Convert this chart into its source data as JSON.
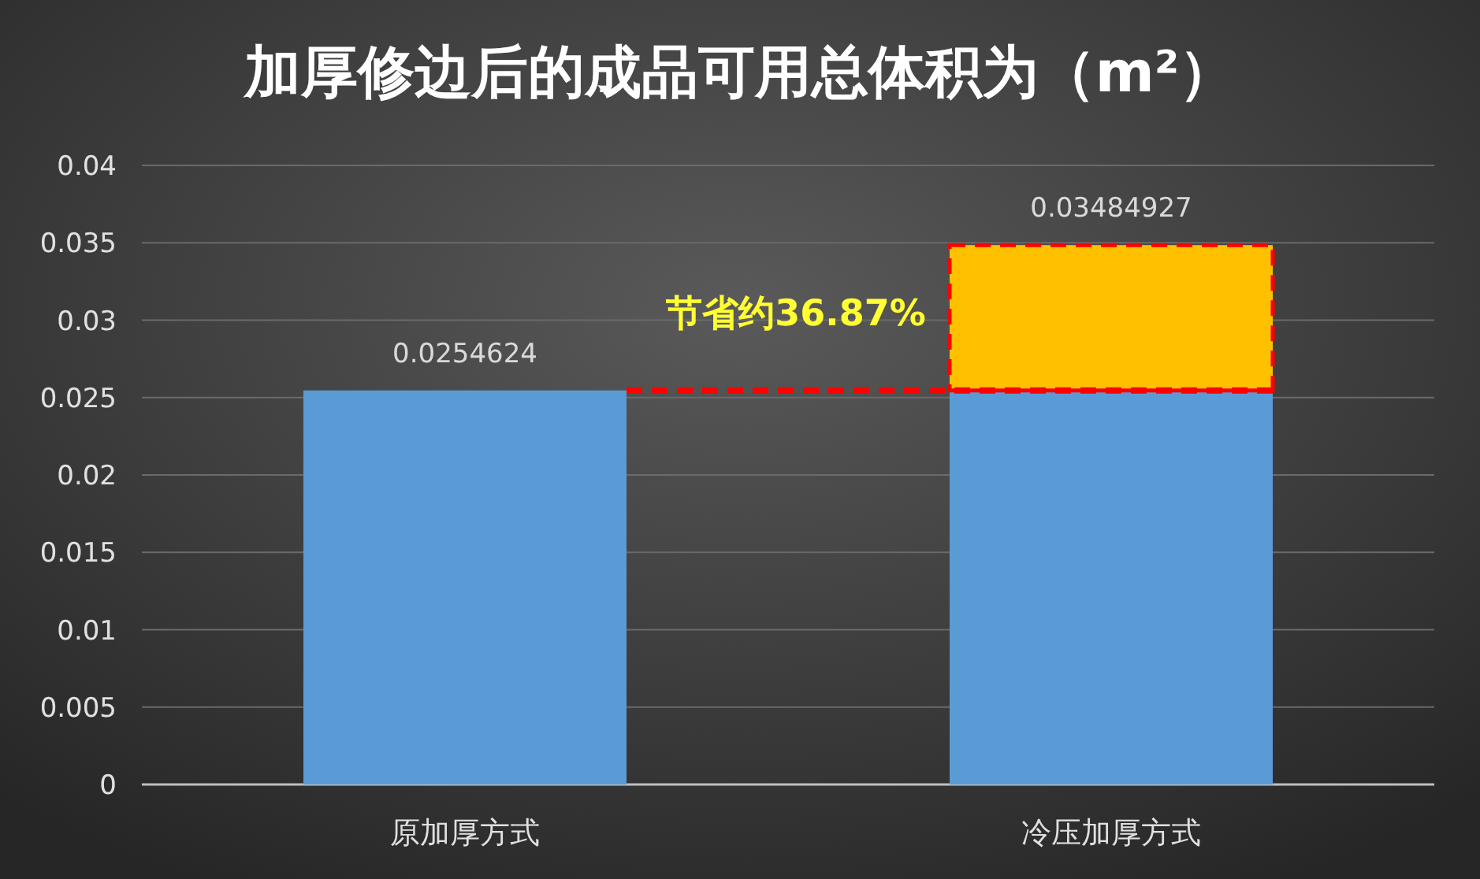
{
  "chart_data": {
    "type": "bar",
    "title": "加厚修边后的成品可用总体积为（m²）",
    "categories": [
      "原加厚方式",
      "冷压加厚方式"
    ],
    "stacked": true,
    "series": [
      {
        "color": "#5b9bd5",
        "values": [
          0.0254624,
          0.0254624
        ]
      },
      {
        "color": "#ffc000",
        "values": [
          null,
          0.00938687
        ],
        "line_style": "dashed"
      }
    ],
    "totals": [
      "0.0254624",
      "0.03484927"
    ],
    "ylim": [
      0,
      0.04
    ],
    "yticks": [
      0,
      0.005,
      0.01,
      0.015,
      0.02,
      0.025,
      0.03,
      0.035,
      0.04
    ],
    "grid": "y",
    "ref_lines": [
      {
        "axis": "y",
        "value": 0.0254624,
        "color": "#ff0000",
        "line_style": "dashed"
      }
    ],
    "annotations": [
      "节省约36.87%"
    ]
  }
}
